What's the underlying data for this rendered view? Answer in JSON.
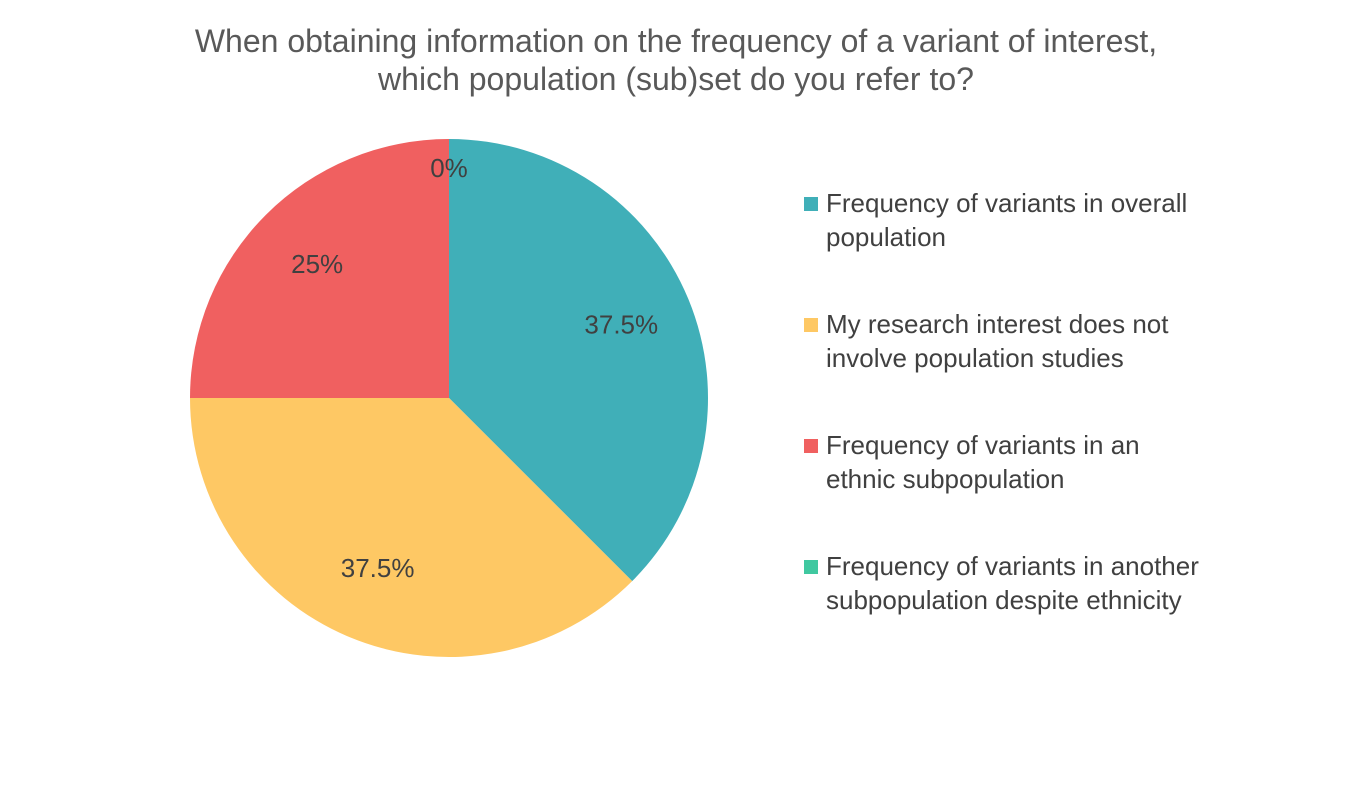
{
  "chart_data": {
    "type": "pie",
    "title_lines": [
      "When obtaining information on the frequency of a variant of interest,",
      "which population (sub)set do you refer to?"
    ],
    "legend_position": "right",
    "series": [
      {
        "name": "Frequency of variants in overall population",
        "legend_lines": [
          "Frequency of variants in overall",
          "population"
        ],
        "value": 37.5,
        "label": "37.5%",
        "color": "#40AFB8"
      },
      {
        "name": "My research interest does not involve population studies",
        "legend_lines": [
          "My research interest does not",
          "involve population studies"
        ],
        "value": 37.5,
        "label": "37.5%",
        "color": "#FEC864"
      },
      {
        "name": "Frequency of variants in an ethnic subpopulation",
        "legend_lines": [
          "Frequency of variants in an",
          "ethnic subpopulation"
        ],
        "value": 25,
        "label": "25%",
        "color": "#F06060"
      },
      {
        "name": "Frequency of variants in another subpopulation despite ethnicity",
        "legend_lines": [
          "Frequency of variants in another",
          "subpopulation despite ethnicity"
        ],
        "value": 0,
        "label": "0%",
        "color": "#40C8A0"
      }
    ]
  }
}
